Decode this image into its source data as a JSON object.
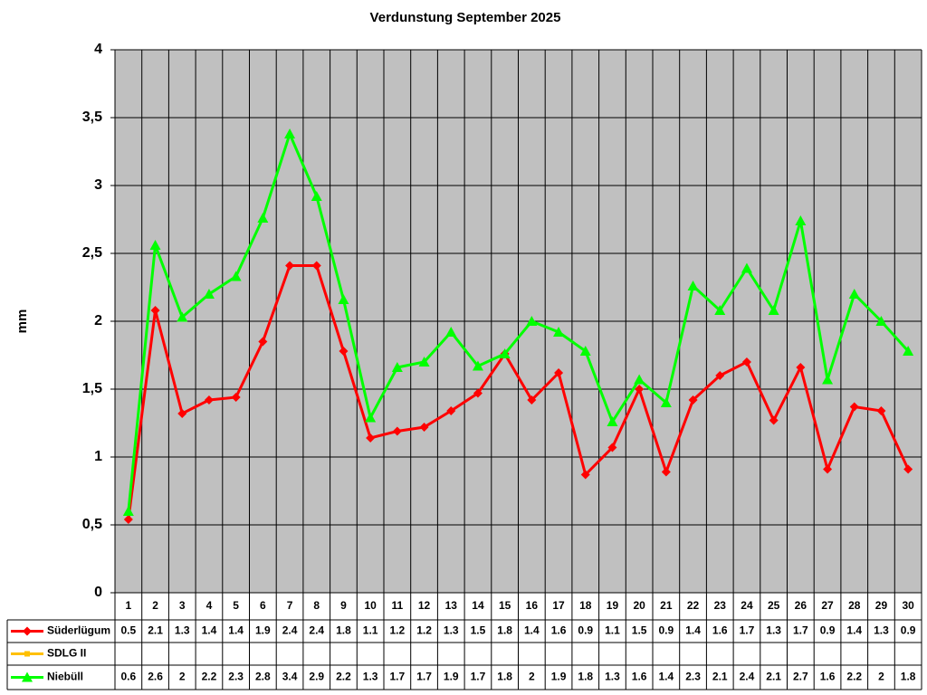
{
  "chart_data": {
    "type": "line",
    "title": "Verdunstung September 2025",
    "ylabel": "mm",
    "categories": [
      "1",
      "2",
      "3",
      "4",
      "5",
      "6",
      "7",
      "8",
      "9",
      "10",
      "11",
      "12",
      "13",
      "14",
      "15",
      "16",
      "17",
      "18",
      "19",
      "20",
      "21",
      "22",
      "23",
      "24",
      "25",
      "26",
      "27",
      "28",
      "29",
      "30"
    ],
    "ylim": [
      0,
      4
    ],
    "yticks": [
      0,
      {
        "value": 0.5,
        "label": "0,5"
      },
      1,
      {
        "value": 1.5,
        "label": "1,5"
      },
      2,
      {
        "value": 2.5,
        "label": "2,5"
      },
      3,
      {
        "value": 3.5,
        "label": "3,5"
      },
      4
    ],
    "grid": true,
    "series": [
      {
        "name": "Süderlügum",
        "color": "#ff0000",
        "marker": "diamond",
        "values": [
          0.54,
          2.08,
          1.32,
          1.42,
          1.44,
          1.85,
          2.41,
          2.41,
          1.78,
          1.14,
          1.19,
          1.22,
          1.34,
          1.47,
          1.76,
          1.42,
          1.62,
          0.87,
          1.07,
          1.5,
          0.89,
          1.42,
          1.6,
          1.7,
          1.27,
          1.66,
          0.91,
          1.37,
          1.34,
          0.91
        ],
        "value_labels": [
          "0.5",
          "2.1",
          "1.3",
          "1.4",
          "1.4",
          "1.9",
          "2.4",
          "2.4",
          "1.8",
          "1.1",
          "1.2",
          "1.2",
          "1.3",
          "1.5",
          "1.8",
          "1.4",
          "1.6",
          "0.9",
          "1.1",
          "1.5",
          "0.9",
          "1.4",
          "1.6",
          "1.7",
          "1.3",
          "1.7",
          "0.9",
          "1.4",
          "1.3",
          "0.9"
        ]
      },
      {
        "name": "SDLG II",
        "color": "#ffc000",
        "marker": "square",
        "values": [
          null,
          null,
          null,
          null,
          null,
          null,
          null,
          null,
          null,
          null,
          null,
          null,
          null,
          null,
          null,
          null,
          null,
          null,
          null,
          null,
          null,
          null,
          null,
          null,
          null,
          null,
          null,
          null,
          null,
          null
        ]
      },
      {
        "name": "Niebüll",
        "color": "#00ff00",
        "marker": "triangle",
        "values": [
          0.6,
          2.56,
          2.03,
          2.2,
          2.33,
          2.76,
          3.38,
          2.92,
          2.16,
          1.29,
          1.66,
          1.7,
          1.92,
          1.67,
          1.76,
          2.0,
          1.92,
          1.78,
          1.26,
          1.57,
          1.4,
          2.26,
          2.08,
          2.39,
          2.08,
          2.74,
          1.57,
          2.2,
          2.0,
          1.78
        ],
        "value_labels": [
          "0.6",
          "2.6",
          "2",
          "2.2",
          "2.3",
          "2.8",
          "3.4",
          "2.9",
          "2.2",
          "1.3",
          "1.7",
          "1.7",
          "1.9",
          "1.7",
          "1.8",
          "2",
          "1.9",
          "1.8",
          "1.3",
          "1.6",
          "1.4",
          "2.3",
          "2.1",
          "2.4",
          "2.1",
          "2.7",
          "1.6",
          "2.2",
          "2",
          "1.8"
        ]
      }
    ]
  }
}
